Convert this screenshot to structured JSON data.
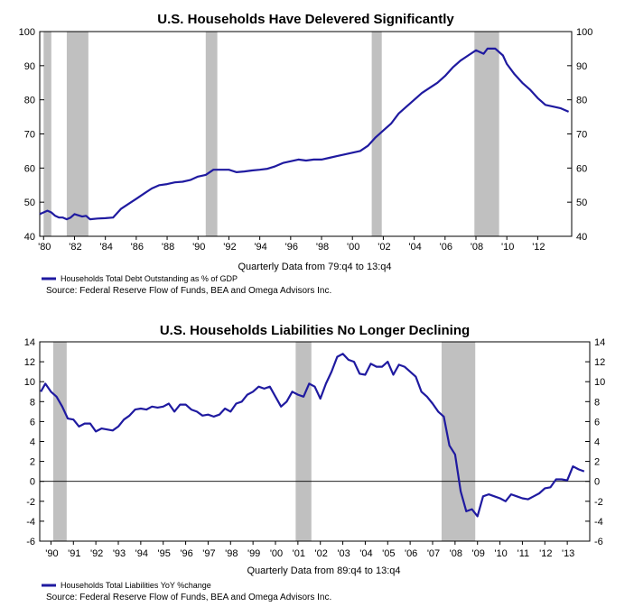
{
  "chart_data": [
    {
      "type": "line",
      "title": "U.S. Households Have Delevered Significantly",
      "xlabel": "Quarterly Data from 79:q4 to 13:q4",
      "ylabel": "",
      "ylim": [
        40,
        100
      ],
      "yticks": [
        40,
        50,
        60,
        70,
        80,
        90,
        100
      ],
      "xlim": [
        1979.75,
        2014.2
      ],
      "xtick_labels": [
        "'80",
        "'82",
        "'84",
        "'86",
        "'88",
        "'90",
        "'92",
        "'94",
        "'96",
        "'98",
        "'00",
        "'02",
        "'04",
        "'06",
        "'08",
        "'10",
        "'12"
      ],
      "xtick_values": [
        1980,
        1982,
        1984,
        1986,
        1988,
        1990,
        1992,
        1994,
        1996,
        1998,
        2000,
        2002,
        2004,
        2006,
        2008,
        2010,
        2012
      ],
      "recessions": [
        [
          1980.0,
          1980.5
        ],
        [
          1981.5,
          1982.9
        ],
        [
          1990.5,
          1991.25
        ],
        [
          2001.25,
          2001.9
        ],
        [
          2007.9,
          2009.5
        ]
      ],
      "legend_position": "bottom-left",
      "series": [
        {
          "name": "Households Total Debt Outstanding as % of GDP",
          "color": "#1f1aa0",
          "points": [
            [
              1979.75,
              46.5
            ],
            [
              1980.0,
              47.0
            ],
            [
              1980.25,
              47.5
            ],
            [
              1980.5,
              47.0
            ],
            [
              1980.75,
              46.0
            ],
            [
              1981.0,
              45.5
            ],
            [
              1981.25,
              45.5
            ],
            [
              1981.5,
              45.0
            ],
            [
              1981.75,
              45.5
            ],
            [
              1982.0,
              46.5
            ],
            [
              1982.5,
              45.8
            ],
            [
              1982.75,
              46.0
            ],
            [
              1983.0,
              45.0
            ],
            [
              1983.5,
              45.2
            ],
            [
              1984.0,
              45.3
            ],
            [
              1984.5,
              45.5
            ],
            [
              1985.0,
              48.0
            ],
            [
              1985.5,
              49.5
            ],
            [
              1986.0,
              51.0
            ],
            [
              1986.5,
              52.5
            ],
            [
              1987.0,
              54.0
            ],
            [
              1987.5,
              55.0
            ],
            [
              1988.0,
              55.3
            ],
            [
              1988.5,
              55.8
            ],
            [
              1989.0,
              56.0
            ],
            [
              1989.5,
              56.5
            ],
            [
              1990.0,
              57.5
            ],
            [
              1990.5,
              58.0
            ],
            [
              1991.0,
              59.5
            ],
            [
              1991.5,
              59.5
            ],
            [
              1992.0,
              59.5
            ],
            [
              1992.5,
              58.8
            ],
            [
              1993.0,
              59.0
            ],
            [
              1993.5,
              59.3
            ],
            [
              1994.0,
              59.5
            ],
            [
              1994.5,
              59.8
            ],
            [
              1995.0,
              60.5
            ],
            [
              1995.5,
              61.5
            ],
            [
              1996.0,
              62.0
            ],
            [
              1996.5,
              62.5
            ],
            [
              1997.0,
              62.2
            ],
            [
              1997.5,
              62.5
            ],
            [
              1998.0,
              62.5
            ],
            [
              1998.5,
              63.0
            ],
            [
              1999.0,
              63.5
            ],
            [
              1999.5,
              64.0
            ],
            [
              2000.0,
              64.5
            ],
            [
              2000.5,
              65.0
            ],
            [
              2001.0,
              66.5
            ],
            [
              2001.5,
              69.0
            ],
            [
              2002.0,
              71.0
            ],
            [
              2002.5,
              73.0
            ],
            [
              2003.0,
              76.0
            ],
            [
              2003.5,
              78.0
            ],
            [
              2004.0,
              80.0
            ],
            [
              2004.5,
              82.0
            ],
            [
              2005.0,
              83.5
            ],
            [
              2005.5,
              85.0
            ],
            [
              2006.0,
              87.0
            ],
            [
              2006.5,
              89.5
            ],
            [
              2007.0,
              91.5
            ],
            [
              2007.5,
              93.0
            ],
            [
              2008.0,
              94.5
            ],
            [
              2008.5,
              93.5
            ],
            [
              2008.75,
              95.0
            ],
            [
              2009.25,
              95.0
            ],
            [
              2009.75,
              93.0
            ],
            [
              2010.0,
              90.5
            ],
            [
              2010.5,
              87.5
            ],
            [
              2011.0,
              85.0
            ],
            [
              2011.5,
              83.0
            ],
            [
              2012.0,
              80.5
            ],
            [
              2012.25,
              79.5
            ],
            [
              2012.5,
              78.5
            ],
            [
              2013.0,
              78.0
            ],
            [
              2013.5,
              77.5
            ],
            [
              2014.0,
              76.5
            ]
          ]
        }
      ]
    },
    {
      "type": "line",
      "title": "U.S. Households Liabilities No Longer Declining",
      "xlabel": "Quarterly Data from 89:q4 to 13:q4",
      "ylabel": "",
      "ylim": [
        -6,
        14
      ],
      "yticks": [
        -6,
        -4,
        -2,
        0,
        2,
        4,
        6,
        8,
        10,
        12,
        14
      ],
      "xlim": [
        1989.5,
        2014.0
      ],
      "xtick_labels": [
        "'90",
        "'91",
        "'92",
        "'93",
        "'94",
        "'95",
        "'96",
        "'97",
        "'98",
        "'99",
        "'00",
        "'01",
        "'02",
        "'03",
        "'04",
        "'05",
        "'06",
        "'07",
        "'08",
        "'09",
        "'10",
        "'11",
        "'12",
        "'13"
      ],
      "xtick_values": [
        1990,
        1991,
        1992,
        1993,
        1994,
        1995,
        1996,
        1997,
        1998,
        1999,
        2000,
        2001,
        2002,
        2003,
        2004,
        2005,
        2006,
        2007,
        2008,
        2009,
        2010,
        2011,
        2012,
        2013
      ],
      "recessions": [
        [
          1990.1,
          1990.7
        ],
        [
          2000.9,
          2001.6
        ],
        [
          2007.4,
          2008.9
        ]
      ],
      "zero_line": true,
      "legend_position": "bottom-left",
      "series": [
        {
          "name": "Households Total Liabilities YoY %change",
          "color": "#1f1aa0",
          "points": [
            [
              1989.55,
              9.0
            ],
            [
              1989.75,
              9.8
            ],
            [
              1990.0,
              9.0
            ],
            [
              1990.25,
              8.5
            ],
            [
              1990.5,
              7.5
            ],
            [
              1990.75,
              6.3
            ],
            [
              1991.0,
              6.2
            ],
            [
              1991.25,
              5.5
            ],
            [
              1991.5,
              5.8
            ],
            [
              1991.75,
              5.8
            ],
            [
              1992.0,
              5.0
            ],
            [
              1992.25,
              5.3
            ],
            [
              1992.5,
              5.2
            ],
            [
              1992.75,
              5.1
            ],
            [
              1993.0,
              5.5
            ],
            [
              1993.25,
              6.2
            ],
            [
              1993.5,
              6.6
            ],
            [
              1993.75,
              7.2
            ],
            [
              1994.0,
              7.3
            ],
            [
              1994.25,
              7.2
            ],
            [
              1994.5,
              7.5
            ],
            [
              1994.75,
              7.4
            ],
            [
              1995.0,
              7.5
            ],
            [
              1995.25,
              7.8
            ],
            [
              1995.5,
              7.0
            ],
            [
              1995.75,
              7.7
            ],
            [
              1996.0,
              7.7
            ],
            [
              1996.25,
              7.2
            ],
            [
              1996.5,
              7.0
            ],
            [
              1996.75,
              6.6
            ],
            [
              1997.0,
              6.7
            ],
            [
              1997.25,
              6.5
            ],
            [
              1997.5,
              6.7
            ],
            [
              1997.75,
              7.3
            ],
            [
              1998.0,
              7.0
            ],
            [
              1998.25,
              7.8
            ],
            [
              1998.5,
              8.0
            ],
            [
              1998.75,
              8.7
            ],
            [
              1999.0,
              9.0
            ],
            [
              1999.25,
              9.5
            ],
            [
              1999.5,
              9.3
            ],
            [
              1999.75,
              9.5
            ],
            [
              2000.0,
              8.5
            ],
            [
              2000.25,
              7.5
            ],
            [
              2000.5,
              8.0
            ],
            [
              2000.75,
              9.0
            ],
            [
              2001.0,
              8.7
            ],
            [
              2001.25,
              8.5
            ],
            [
              2001.5,
              9.8
            ],
            [
              2001.75,
              9.5
            ],
            [
              2002.0,
              8.3
            ],
            [
              2002.25,
              9.8
            ],
            [
              2002.5,
              11.0
            ],
            [
              2002.75,
              12.5
            ],
            [
              2003.0,
              12.8
            ],
            [
              2003.25,
              12.2
            ],
            [
              2003.5,
              12.0
            ],
            [
              2003.75,
              10.8
            ],
            [
              2004.0,
              10.7
            ],
            [
              2004.25,
              11.8
            ],
            [
              2004.5,
              11.5
            ],
            [
              2004.75,
              11.5
            ],
            [
              2005.0,
              12.0
            ],
            [
              2005.25,
              10.7
            ],
            [
              2005.5,
              11.7
            ],
            [
              2005.75,
              11.5
            ],
            [
              2006.0,
              11.0
            ],
            [
              2006.25,
              10.5
            ],
            [
              2006.5,
              9.0
            ],
            [
              2006.75,
              8.5
            ],
            [
              2007.0,
              7.8
            ],
            [
              2007.25,
              7.0
            ],
            [
              2007.5,
              6.5
            ],
            [
              2007.75,
              3.6
            ],
            [
              2008.0,
              2.7
            ],
            [
              2008.25,
              -1.0
            ],
            [
              2008.5,
              -3.0
            ],
            [
              2008.75,
              -2.8
            ],
            [
              2009.0,
              -3.5
            ],
            [
              2009.25,
              -1.5
            ],
            [
              2009.5,
              -1.3
            ],
            [
              2009.75,
              -1.5
            ],
            [
              2010.0,
              -1.7
            ],
            [
              2010.25,
              -2.0
            ],
            [
              2010.5,
              -1.3
            ],
            [
              2010.75,
              -1.5
            ],
            [
              2011.0,
              -1.7
            ],
            [
              2011.25,
              -1.8
            ],
            [
              2011.5,
              -1.5
            ],
            [
              2011.75,
              -1.2
            ],
            [
              2012.0,
              -0.7
            ],
            [
              2012.25,
              -0.6
            ],
            [
              2012.5,
              0.2
            ],
            [
              2012.75,
              0.2
            ],
            [
              2013.0,
              0.1
            ],
            [
              2013.25,
              1.5
            ],
            [
              2013.5,
              1.2
            ],
            [
              2013.75,
              1.0
            ]
          ]
        }
      ]
    }
  ],
  "source_text": "Source: Federal Reserve Flow of Funds, BEA and Omega Advisors Inc."
}
